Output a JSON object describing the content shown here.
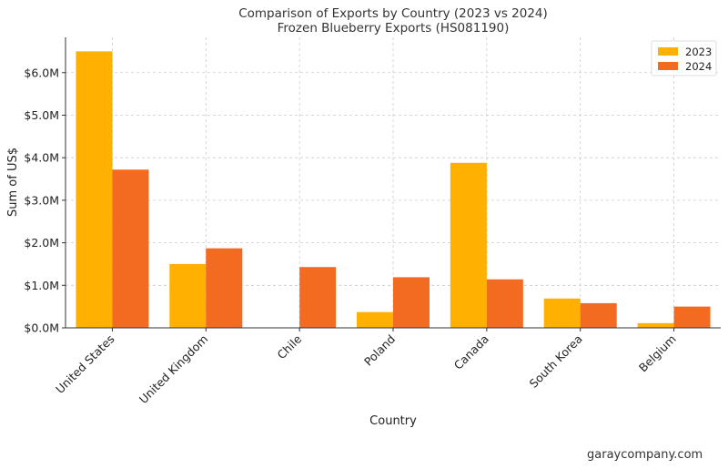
{
  "chart_data": {
    "type": "bar",
    "title": "Comparison of Exports by Country (2023 vs 2024)",
    "subtitle": "Frozen Blueberry Exports (HS081190)",
    "xlabel": "Country",
    "ylabel": "Sum of US$",
    "categories": [
      "United States",
      "United Kingdom",
      "Chile",
      "Poland",
      "Canada",
      "South Korea",
      "Belgium"
    ],
    "series": [
      {
        "name": "2023",
        "color": "#FFB000",
        "values": [
          6.5,
          1.5,
          0.0,
          0.37,
          3.88,
          0.69,
          0.11
        ]
      },
      {
        "name": "2024",
        "color": "#F26B21",
        "values": [
          3.72,
          1.87,
          1.43,
          1.19,
          1.14,
          0.58,
          0.5
        ]
      }
    ],
    "ylim": [
      0,
      6.83
    ],
    "yticks": [
      0,
      1,
      2,
      3,
      4,
      5,
      6
    ],
    "ytick_labels": [
      "$0.0M",
      "$1.0M",
      "$2.0M",
      "$3.0M",
      "$4.0M",
      "$5.0M",
      "$6.0M"
    ],
    "grid": true,
    "legend_position": "top-right"
  },
  "watermark": "garaycompany.com"
}
